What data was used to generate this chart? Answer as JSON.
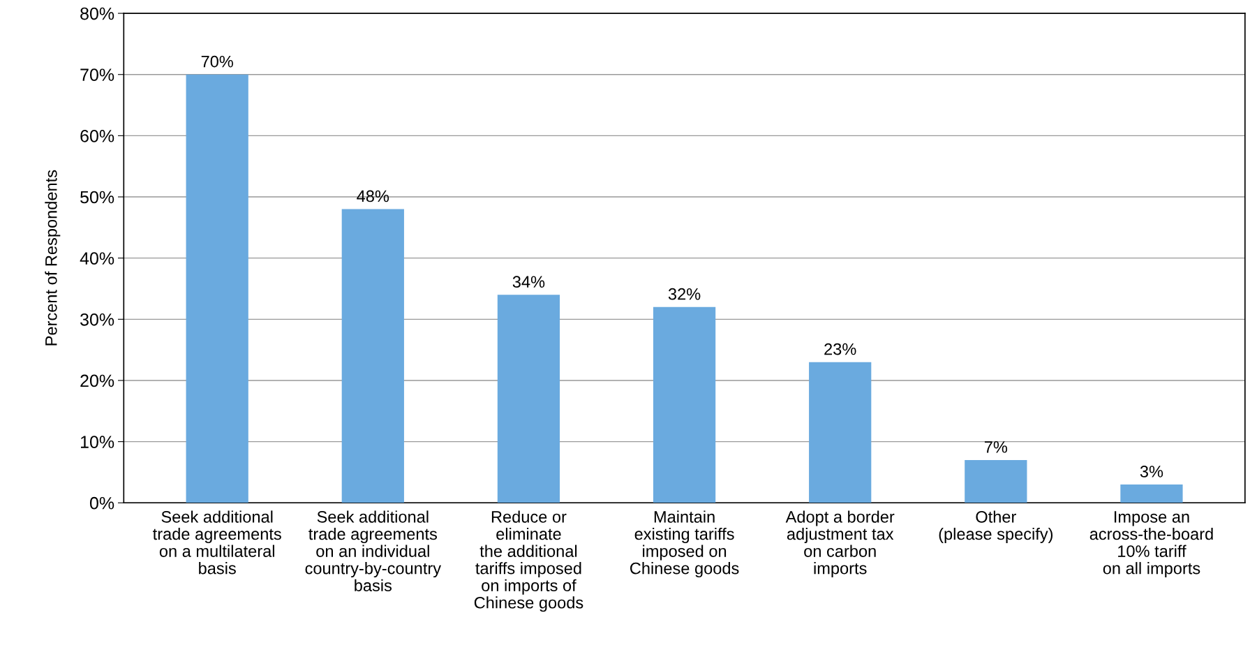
{
  "chart_data": {
    "type": "bar",
    "ylabel": "Percent of Respondents",
    "categories": [
      "Seek additional\ntrade agreements\non a multilateral\nbasis",
      "Seek additional\ntrade agreements\non an individual\ncountry-by-country\nbasis",
      "Reduce or\neliminate\nthe additional\ntariffs imposed\non imports of\nChinese goods",
      "Maintain\nexisting tariffs\nimposed on\nChinese goods",
      "Adopt a border\nadjustment tax\non carbon\nimports",
      "Other\n(please specify)",
      "Impose an\nacross-the-board\n10% tariff\non all imports"
    ],
    "values": [
      70,
      48,
      34,
      32,
      23,
      7,
      3
    ],
    "value_labels": [
      "70%",
      "48%",
      "34%",
      "32%",
      "23%",
      "7%",
      "3%"
    ],
    "color": "#6aaadf",
    "ylim": [
      0,
      80
    ],
    "yticks": [
      {
        "value": 0,
        "label": "0%"
      },
      {
        "value": 10,
        "label": "10%"
      },
      {
        "value": 20,
        "label": "20%"
      },
      {
        "value": 30,
        "label": "30%"
      },
      {
        "value": 40,
        "label": "40%"
      },
      {
        "value": 50,
        "label": "50%"
      },
      {
        "value": 60,
        "label": "60%"
      },
      {
        "value": 70,
        "label": "70%"
      },
      {
        "value": 80,
        "label": "80%"
      }
    ],
    "grid": "y"
  }
}
